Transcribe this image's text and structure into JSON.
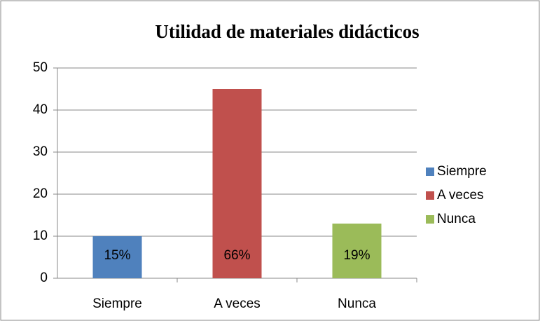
{
  "chart_data": {
    "type": "bar",
    "title": "Utilidad de materiales didácticos",
    "categories": [
      "Siempre",
      "A veces",
      "Nunca"
    ],
    "values": [
      10,
      45,
      13
    ],
    "data_labels": [
      "15%",
      "66%",
      "19%"
    ],
    "colors": [
      "#4f81bd",
      "#c0504d",
      "#9bbb59"
    ],
    "ylim": [
      0,
      50
    ],
    "yticks": [
      0,
      10,
      20,
      30,
      40,
      50
    ],
    "grid": true,
    "legend": "right"
  }
}
